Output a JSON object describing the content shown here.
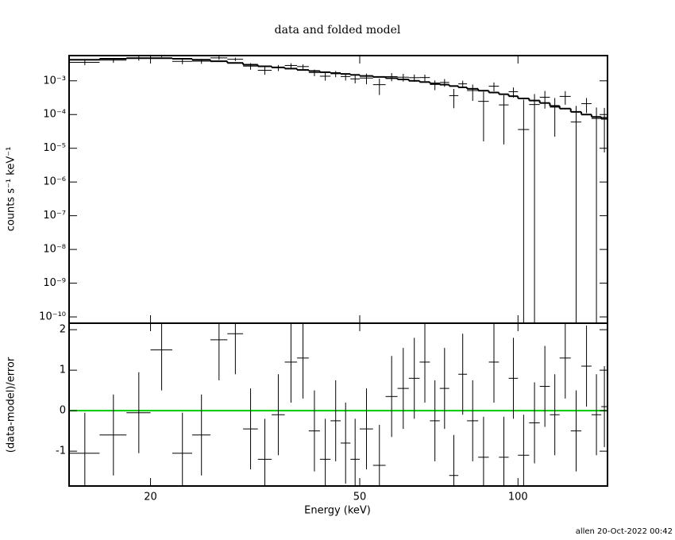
{
  "chart_data": [
    {
      "type": "errorbar",
      "title": "data and folded model",
      "ylabel": "counts s⁻¹ keV⁻¹",
      "log_x": true,
      "log_y": true,
      "xlim": [
        14,
        148
      ],
      "ylim": [
        6.5e-11,
        0.0056
      ],
      "yticks": [
        {
          "value": 1e-10,
          "label": "10⁻¹⁰"
        },
        {
          "value": 1e-09,
          "label": "10⁻⁹"
        },
        {
          "value": 1e-08,
          "label": "10⁻⁸"
        },
        {
          "value": 1e-07,
          "label": "10⁻⁷"
        },
        {
          "value": 1e-06,
          "label": "10⁻⁶"
        },
        {
          "value": 1e-05,
          "label": "10⁻⁵"
        },
        {
          "value": 0.0001,
          "label": "10⁻⁴"
        },
        {
          "value": 0.001,
          "label": "10⁻³"
        }
      ],
      "color": "#000000",
      "x": [
        15,
        17,
        19,
        21,
        23,
        25,
        27,
        29,
        31,
        33,
        35,
        37,
        39,
        41,
        43,
        45,
        47,
        49,
        51.5,
        54.5,
        57.5,
        60.5,
        63.5,
        66.5,
        69.5,
        72.5,
        75.5,
        78.5,
        82,
        86,
        90,
        94,
        98,
        102.5,
        107.5,
        112.5,
        117.5,
        123,
        129,
        135,
        141,
        146
      ],
      "xerr": [
        1,
        1,
        1,
        1,
        1,
        1,
        1,
        1,
        1,
        1,
        1,
        1,
        1,
        1,
        1,
        1,
        1,
        1,
        1.5,
        1.5,
        1.5,
        1.5,
        1.5,
        1.5,
        1.5,
        1.5,
        1.5,
        1.5,
        2,
        2,
        2,
        2,
        2,
        2.5,
        2.5,
        2.5,
        2.5,
        3,
        3,
        3,
        3,
        2
      ],
      "values": [
        0.00354,
        0.0041,
        0.00466,
        0.00576,
        0.00379,
        0.00382,
        0.0048,
        0.00437,
        0.00273,
        0.00205,
        0.00245,
        0.00285,
        0.00265,
        0.00176,
        0.00137,
        0.00162,
        0.00134,
        0.00114,
        0.00121,
        0.00077,
        0.00133,
        0.00128,
        0.00124,
        0.00125,
        0.00078,
        0.000897,
        0.000364,
        0.000813,
        0.000515,
        0.000246,
        0.000693,
        0.000193,
        0.000476,
        3.6e-05,
        0.000198,
        0.000326,
        0.000166,
        0.000345,
        6e-05,
        0.00021,
        7.65e-05,
        8.25e-05
      ],
      "errors": [
        0.00063,
        0.000675,
        0.000705,
        0.000705,
        0.000675,
        0.00063,
        0.00057,
        0.00051,
        0.0006,
        0.00054,
        0.0005,
        0.00046,
        0.00042,
        0.00039,
        0.00036,
        0.00034,
        0.00032,
        0.0003,
        0.00042,
        0.00039,
        0.00036,
        0.00033,
        0.0003,
        0.000276,
        0.000252,
        0.000231,
        0.00021,
        0.000192,
        0.000261,
        0.00023,
        0.000203,
        0.00018,
        0.000158,
        0.00024,
        0.000208,
        0.000176,
        0.000144,
        0.00015,
        0.00012,
        0.0001,
        8.5e-05,
        7.5e-05
      ],
      "model": [
        0.0042,
        0.0045,
        0.0047,
        0.0047,
        0.0045,
        0.0042,
        0.0038,
        0.0034,
        0.003,
        0.0027,
        0.0025,
        0.0023,
        0.0021,
        0.00195,
        0.0018,
        0.0017,
        0.0016,
        0.0015,
        0.0014,
        0.0013,
        0.0012,
        0.0011,
        0.001,
        0.00092,
        0.00084,
        0.00077,
        0.0007,
        0.00064,
        0.00058,
        0.00051,
        0.00045,
        0.0004,
        0.00035,
        0.0003,
        0.00026,
        0.00022,
        0.00018,
        0.00015,
        0.00012,
        0.0001,
        8.5e-05,
        7.5e-05
      ],
      "model_color": "#000000"
    },
    {
      "type": "residual",
      "xlabel": "Energy (keV)",
      "ylabel": "(data-model)/error",
      "log_x": true,
      "xlim": [
        14,
        148
      ],
      "xticks": [
        20,
        50,
        100
      ],
      "ylim": [
        -1.86,
        2.16
      ],
      "yticks": [
        -1,
        0,
        1,
        2
      ],
      "color": "#000000",
      "values": [
        -1.05,
        -0.6,
        -0.05,
        1.5,
        -1.05,
        -0.6,
        1.75,
        1.9,
        -0.45,
        -1.2,
        -0.1,
        1.2,
        1.3,
        -0.5,
        -1.2,
        -0.25,
        -0.8,
        -1.2,
        -0.45,
        -1.35,
        0.35,
        0.55,
        0.8,
        1.2,
        -0.25,
        0.55,
        -1.6,
        0.9,
        -0.25,
        -1.15,
        1.2,
        -1.15,
        0.8,
        -1.1,
        -0.3,
        0.6,
        -0.1,
        1.3,
        -0.5,
        1.1,
        -0.1,
        0.1
      ],
      "errors": [
        1,
        1,
        1,
        1,
        1,
        1,
        1,
        1,
        1,
        1,
        1,
        1,
        1,
        1,
        1,
        1,
        1,
        1,
        1,
        1,
        1,
        1,
        1,
        1,
        1,
        1,
        1,
        1,
        1,
        1,
        1,
        1,
        1,
        1,
        1,
        1,
        1,
        1,
        1,
        1,
        1,
        1
      ],
      "reference_line": 0,
      "reference_color": "#00cc00",
      "footer": "allen 20-Oct-2022 00:42"
    }
  ]
}
